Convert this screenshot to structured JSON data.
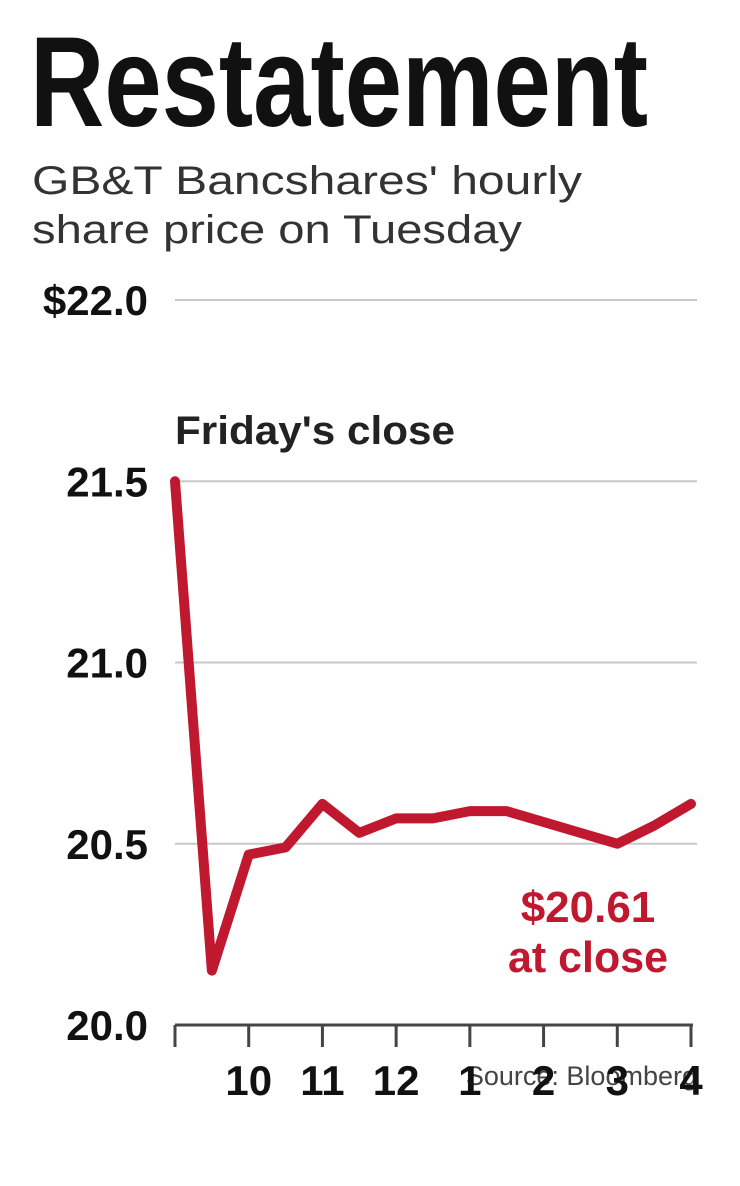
{
  "chart_data": {
    "type": "line",
    "title": "Restatement",
    "subtitle": [
      "GB&T Bancshares' hourly",
      "share price on Tuesday"
    ],
    "x": [
      9,
      9.5,
      10,
      10.5,
      11,
      11.5,
      12,
      12.5,
      13,
      13.5,
      14,
      14.5,
      15,
      15.5,
      16
    ],
    "series": [
      {
        "name": "GB&T Bancshares",
        "color": "#c0182f",
        "values": [
          21.5,
          20.15,
          20.47,
          20.49,
          20.61,
          20.53,
          20.57,
          20.57,
          20.59,
          20.59,
          20.56,
          20.53,
          20.5,
          20.55,
          20.61
        ]
      }
    ],
    "xlim": [
      9,
      16
    ],
    "xticks": [
      {
        "value": 9,
        "label": null
      },
      10,
      11,
      12,
      {
        "value": 13,
        "label": "1"
      },
      {
        "value": 14,
        "label": "2"
      },
      {
        "value": 15,
        "label": "3"
      },
      {
        "value": 16,
        "label": "4"
      }
    ],
    "ylim": [
      20,
      22
    ],
    "yticks": [
      {
        "value": 20,
        "label": "20.0"
      },
      20.5,
      {
        "value": 21,
        "label": "21.0"
      },
      21.5,
      {
        "value": 22,
        "label": "$22.0"
      }
    ],
    "grid": true,
    "annotations": [
      "Friday's close",
      "$20.61",
      "at close"
    ],
    "source": "Source: Bloomberg"
  }
}
